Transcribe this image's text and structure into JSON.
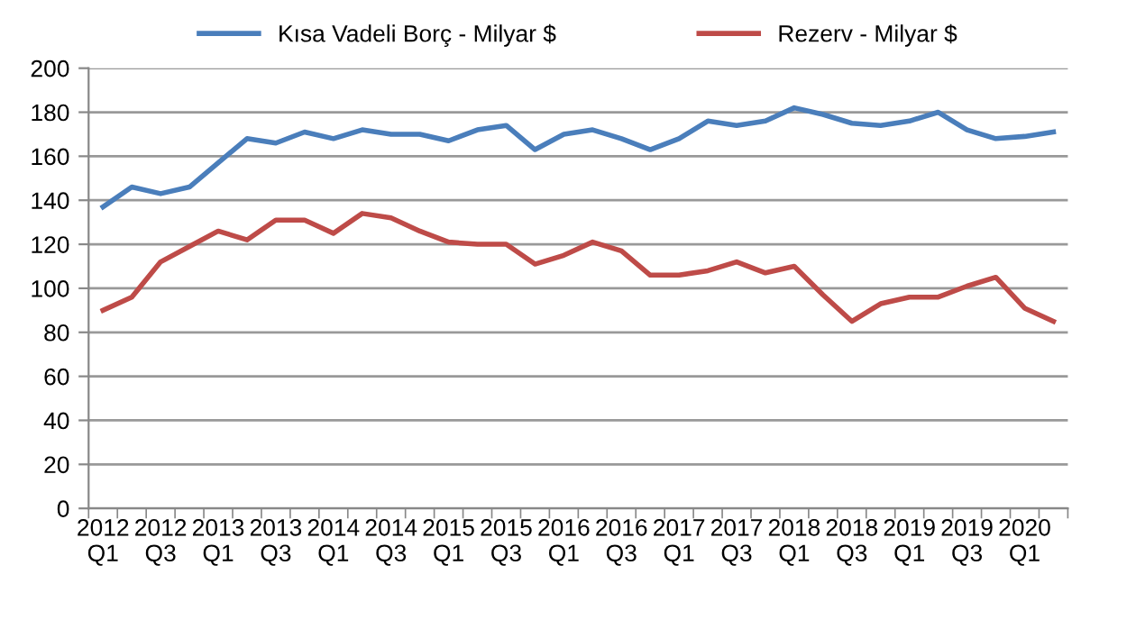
{
  "chart_data": {
    "type": "line",
    "categories": [
      "2012\nQ1",
      null,
      "2012\nQ3",
      null,
      "2013\nQ1",
      null,
      "2013\nQ3",
      null,
      "2014\nQ1",
      null,
      "2014\nQ3",
      null,
      "2015\nQ1",
      null,
      "2015\nQ3",
      null,
      "2016\nQ1",
      null,
      "2016\nQ3",
      null,
      "2017\nQ1",
      null,
      "2017\nQ3",
      null,
      "2018\nQ1",
      null,
      "2018\nQ3",
      null,
      "2019\nQ1",
      null,
      "2019\nQ3",
      null,
      "2020\nQ1",
      null
    ],
    "series": [
      {
        "name": "Kısa Vadeli Borç - Milyar $",
        "color": "#4a7ebb",
        "values": [
          137,
          146,
          143,
          146,
          157,
          168,
          166,
          171,
          168,
          172,
          170,
          170,
          167,
          172,
          174,
          163,
          170,
          172,
          168,
          163,
          168,
          176,
          174,
          176,
          182,
          179,
          175,
          174,
          176,
          180,
          172,
          168,
          169,
          171
        ]
      },
      {
        "name": "Rezerv - Milyar $",
        "color": "#be4b48",
        "values": [
          90,
          96,
          112,
          119,
          126,
          122,
          131,
          131,
          125,
          134,
          132,
          126,
          121,
          120,
          120,
          111,
          115,
          121,
          117,
          106,
          106,
          108,
          112,
          107,
          110,
          97,
          85,
          93,
          96,
          96,
          101,
          105,
          91,
          85
        ]
      }
    ],
    "ylim": [
      0,
      200
    ],
    "yticks": [
      0,
      20,
      40,
      60,
      80,
      100,
      120,
      140,
      160,
      180,
      200
    ],
    "grid": "y",
    "legend": "top",
    "marker": "none",
    "line_style": "solid"
  }
}
